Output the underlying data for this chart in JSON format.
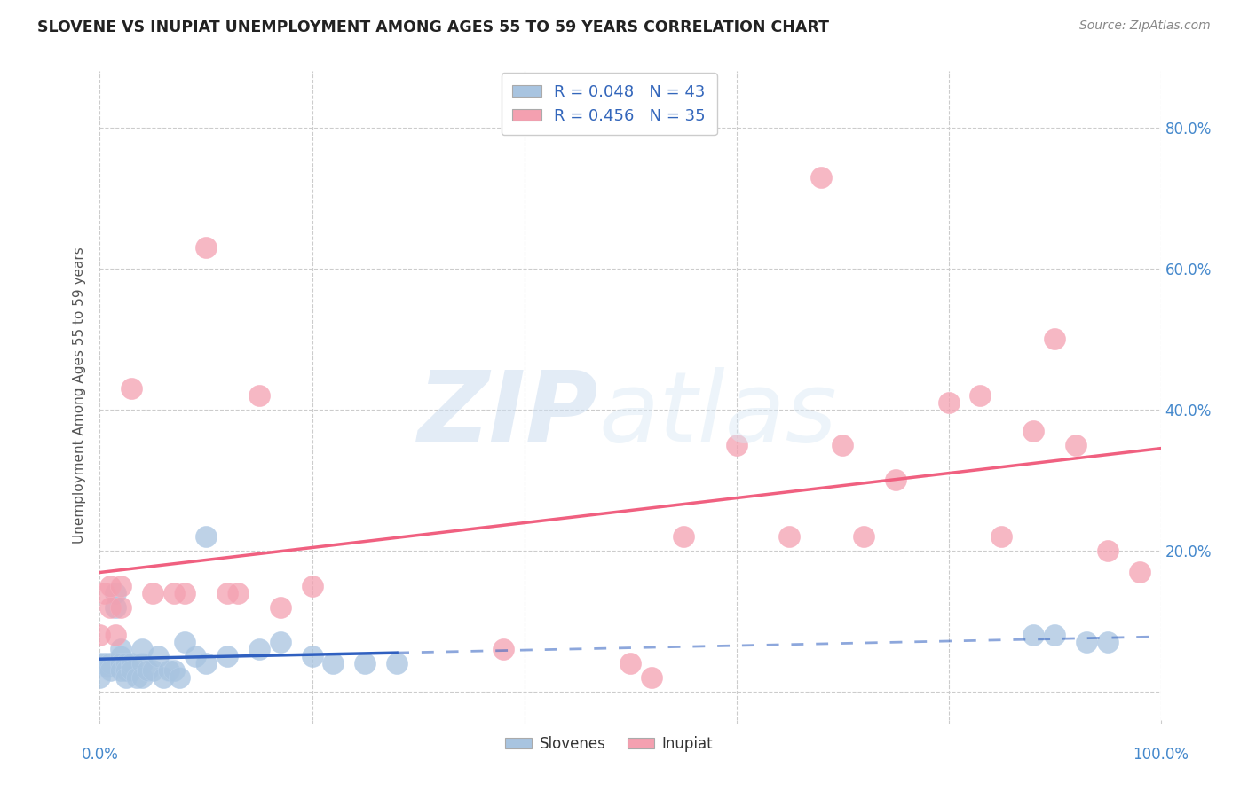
{
  "title": "SLOVENE VS INUPIAT UNEMPLOYMENT AMONG AGES 55 TO 59 YEARS CORRELATION CHART",
  "source": "Source: ZipAtlas.com",
  "ylabel": "Unemployment Among Ages 55 to 59 years",
  "yticks": [
    0.0,
    0.2,
    0.4,
    0.6,
    0.8
  ],
  "ytick_labels": [
    "",
    "20.0%",
    "40.0%",
    "60.0%",
    "80.0%"
  ],
  "xlim": [
    0.0,
    1.0
  ],
  "ylim": [
    -0.04,
    0.88
  ],
  "legend_r1": "R = 0.048   N = 43",
  "legend_r2": "R = 0.456   N = 35",
  "slovene_color": "#a8c4e0",
  "inupiat_color": "#f4a0b0",
  "slovene_line_color": "#3060c0",
  "inupiat_line_color": "#f06080",
  "background_color": "#ffffff",
  "slovene_x": [
    0.0,
    0.0,
    0.005,
    0.007,
    0.01,
    0.01,
    0.015,
    0.015,
    0.02,
    0.02,
    0.02,
    0.02,
    0.025,
    0.025,
    0.025,
    0.03,
    0.03,
    0.035,
    0.04,
    0.04,
    0.04,
    0.045,
    0.05,
    0.055,
    0.06,
    0.065,
    0.07,
    0.075,
    0.08,
    0.09,
    0.1,
    0.1,
    0.12,
    0.15,
    0.17,
    0.2,
    0.22,
    0.25,
    0.28,
    0.88,
    0.9,
    0.93,
    0.95
  ],
  "slovene_y": [
    0.04,
    0.02,
    0.04,
    0.035,
    0.04,
    0.03,
    0.12,
    0.14,
    0.06,
    0.05,
    0.04,
    0.03,
    0.04,
    0.03,
    0.02,
    0.04,
    0.03,
    0.02,
    0.06,
    0.04,
    0.02,
    0.03,
    0.03,
    0.05,
    0.02,
    0.03,
    0.03,
    0.02,
    0.07,
    0.05,
    0.22,
    0.04,
    0.05,
    0.06,
    0.07,
    0.05,
    0.04,
    0.04,
    0.04,
    0.08,
    0.08,
    0.07,
    0.07
  ],
  "inupiat_x": [
    0.0,
    0.005,
    0.01,
    0.01,
    0.015,
    0.02,
    0.02,
    0.03,
    0.05,
    0.07,
    0.08,
    0.1,
    0.12,
    0.13,
    0.15,
    0.17,
    0.2,
    0.38,
    0.5,
    0.52,
    0.55,
    0.6,
    0.65,
    0.68,
    0.7,
    0.72,
    0.75,
    0.8,
    0.83,
    0.85,
    0.88,
    0.9,
    0.92,
    0.95,
    0.98
  ],
  "inupiat_y": [
    0.08,
    0.14,
    0.15,
    0.12,
    0.08,
    0.15,
    0.12,
    0.43,
    0.14,
    0.14,
    0.14,
    0.63,
    0.14,
    0.14,
    0.42,
    0.12,
    0.15,
    0.06,
    0.04,
    0.02,
    0.22,
    0.35,
    0.22,
    0.73,
    0.35,
    0.22,
    0.3,
    0.41,
    0.42,
    0.22,
    0.37,
    0.5,
    0.35,
    0.2,
    0.17
  ],
  "grid_color": "#cccccc"
}
